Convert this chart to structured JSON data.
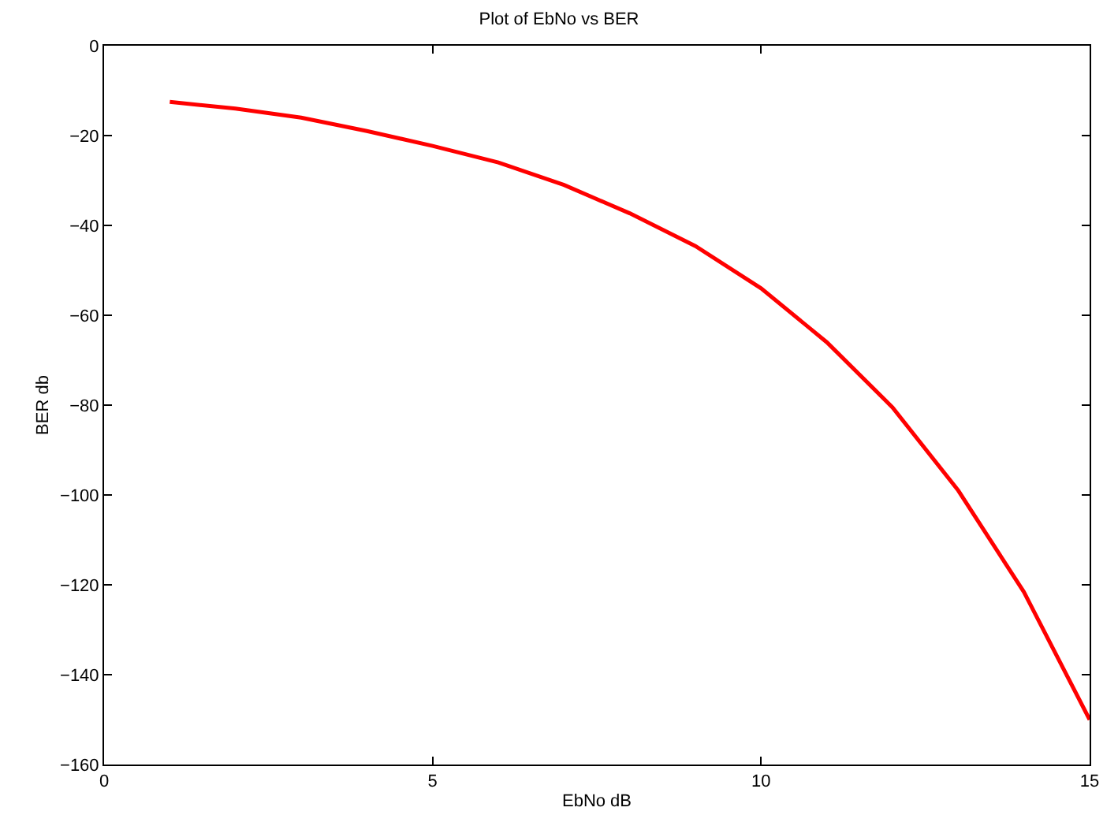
{
  "chart_data": {
    "type": "line",
    "title": "Plot of EbNo vs BER",
    "xlabel": "EbNo dB",
    "ylabel": "BER db",
    "x": [
      1,
      2,
      3,
      4,
      5,
      6,
      7,
      8,
      9,
      10,
      11,
      12,
      13,
      14,
      15
    ],
    "series": [
      {
        "color": "#ff0000",
        "values": [
          -12.5,
          -14,
          -16,
          -19,
          -22.3,
          -26,
          -31,
          -37.3,
          -44.6,
          -54,
          -66,
          -80.5,
          -99,
          -121.6,
          -150
        ]
      }
    ],
    "xlim": [
      0,
      15
    ],
    "xticks": [
      0,
      5,
      10,
      15
    ],
    "ylim": [
      -160,
      0
    ],
    "yticks": [
      -160,
      -140,
      -120,
      -100,
      -80,
      -60,
      -40,
      -20,
      0
    ],
    "grid": false,
    "marker": "none",
    "line_style": "solid"
  }
}
